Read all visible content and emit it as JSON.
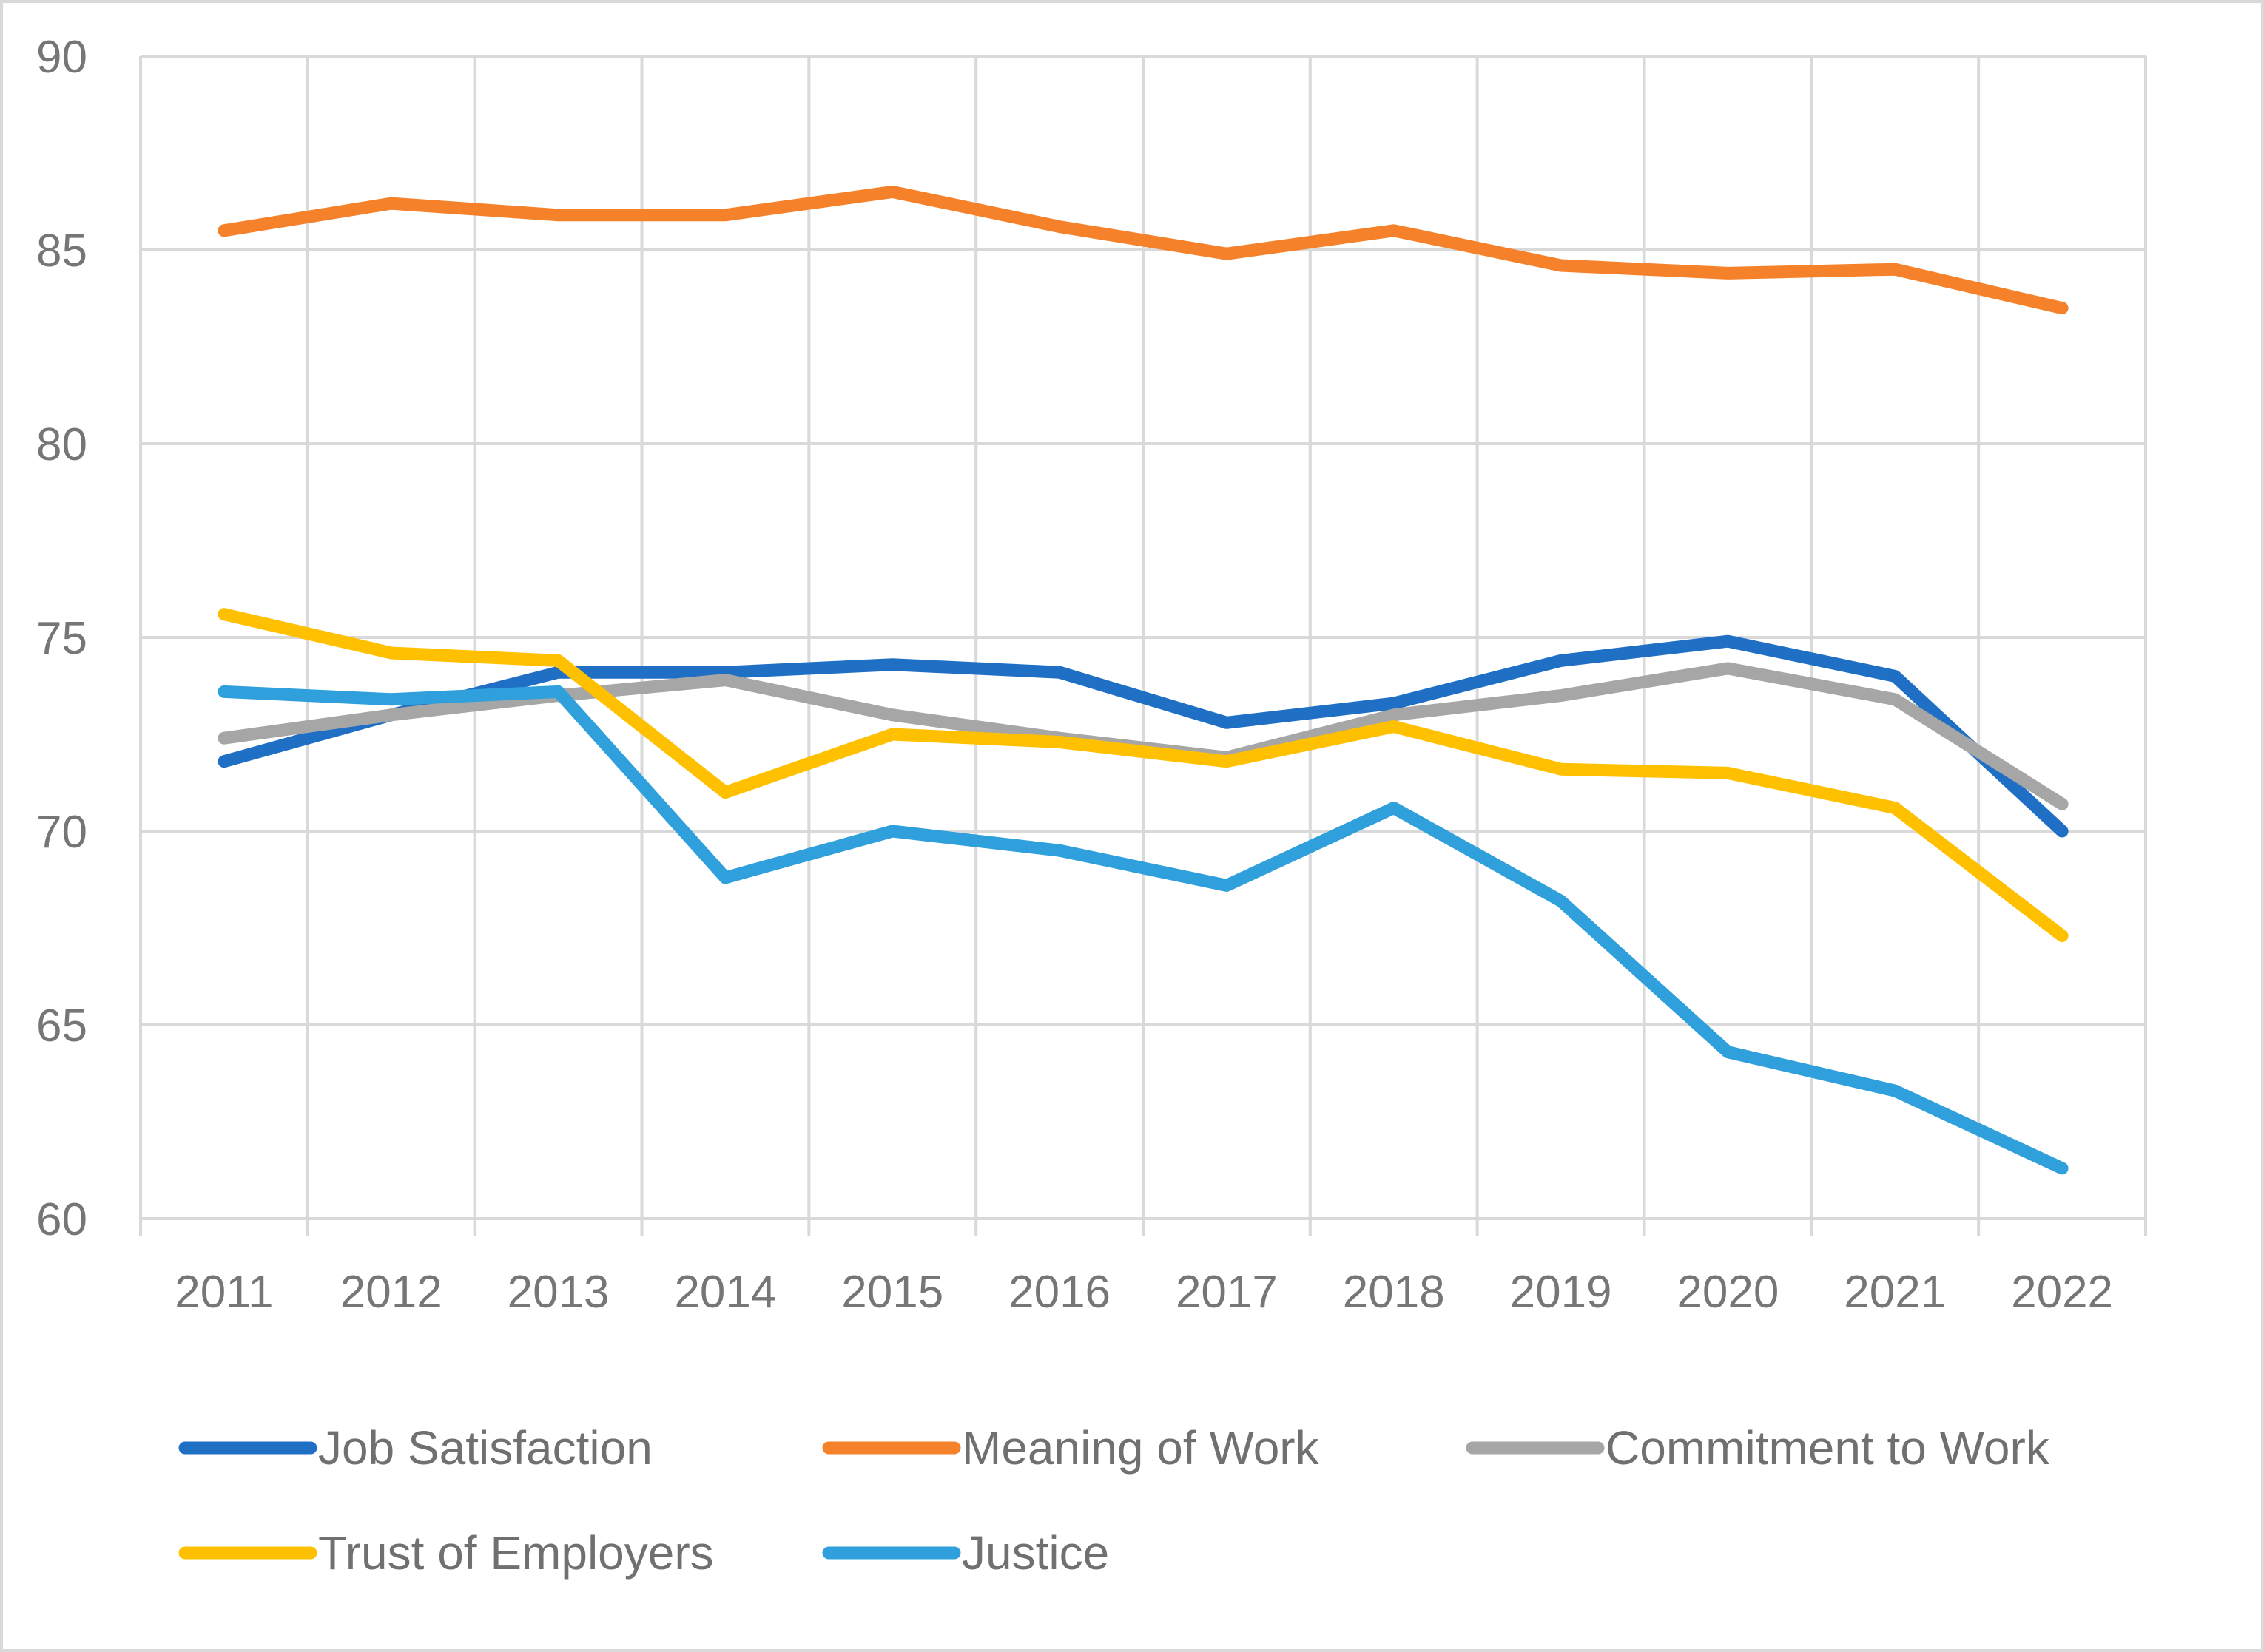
{
  "chart_data": {
    "type": "line",
    "title": "",
    "xlabel": "",
    "ylabel": "",
    "categories": [
      "2011",
      "2012",
      "2013",
      "2014",
      "2015",
      "2016",
      "2017",
      "2018",
      "2019",
      "2020",
      "2021",
      "2022"
    ],
    "ylim": [
      60,
      90
    ],
    "yticks": [
      "60",
      "65",
      "70",
      "75",
      "80",
      "85",
      "90"
    ],
    "grid": true,
    "legend_position": "bottom",
    "series": [
      {
        "name": "Job Satisfaction",
        "color": "#1F6FC5",
        "values": [
          71.8,
          73.0,
          74.1,
          74.1,
          74.3,
          74.1,
          72.8,
          73.3,
          74.4,
          74.9,
          74.0,
          70.0
        ]
      },
      {
        "name": "Meaning of Work",
        "color": "#F5822A",
        "values": [
          85.5,
          86.2,
          85.9,
          85.9,
          86.5,
          85.6,
          84.9,
          85.5,
          84.6,
          84.4,
          84.5,
          83.5
        ]
      },
      {
        "name": "Commitment to Work",
        "color": "#A6A6A6",
        "values": [
          72.4,
          73.0,
          73.5,
          73.9,
          73.0,
          72.4,
          71.9,
          73.0,
          73.5,
          74.2,
          73.4,
          70.7
        ]
      },
      {
        "name": "Trust of Employers",
        "color": "#FFC000",
        "values": [
          75.6,
          74.6,
          74.4,
          71.0,
          72.5,
          72.3,
          71.8,
          72.7,
          71.6,
          71.5,
          70.6,
          67.3
        ]
      },
      {
        "name": "Justice",
        "color": "#2FA0DC",
        "values": [
          73.6,
          73.4,
          73.6,
          68.8,
          70.0,
          69.5,
          68.6,
          70.6,
          68.2,
          64.3,
          63.3,
          61.3
        ]
      }
    ]
  }
}
